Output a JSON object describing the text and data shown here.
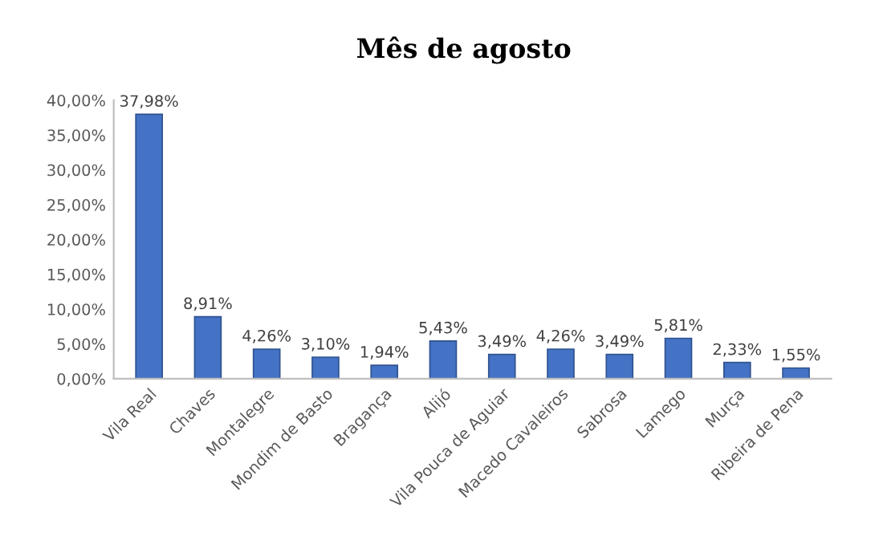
{
  "chart_data": {
    "type": "bar",
    "title": "Mês de agosto",
    "categories": [
      "Vila Real",
      "Chaves",
      "Montalegre",
      "Mondim de Basto",
      "Bragança",
      "Alijó",
      "Vila Pouca de Aguiar",
      "Macedo Cavaleiros",
      "Sabrosa",
      "Lamego",
      "Murça",
      "Ribeira de Pena"
    ],
    "values": [
      37.98,
      8.91,
      4.26,
      3.1,
      1.94,
      5.43,
      3.49,
      4.26,
      3.49,
      5.81,
      2.33,
      1.55
    ],
    "value_labels": [
      "37,98%",
      "8,91%",
      "4,26%",
      "3,10%",
      "1,94%",
      "5,43%",
      "3,49%",
      "4,26%",
      "3,49%",
      "5,81%",
      "2,33%",
      "1,55%"
    ],
    "color": "#4472c4",
    "ylim": [
      0,
      40
    ],
    "yticks": [
      {
        "value": 0,
        "label": "0,00%"
      },
      {
        "value": 5,
        "label": "5,00%"
      },
      {
        "value": 10,
        "label": "10,00%"
      },
      {
        "value": 15,
        "label": "15,00%"
      },
      {
        "value": 20,
        "label": "20,00%"
      },
      {
        "value": 25,
        "label": "25,00%"
      },
      {
        "value": 30,
        "label": "30,00%"
      },
      {
        "value": 35,
        "label": "35,00%"
      },
      {
        "value": 40,
        "label": "40,00%"
      }
    ],
    "grid": false
  }
}
